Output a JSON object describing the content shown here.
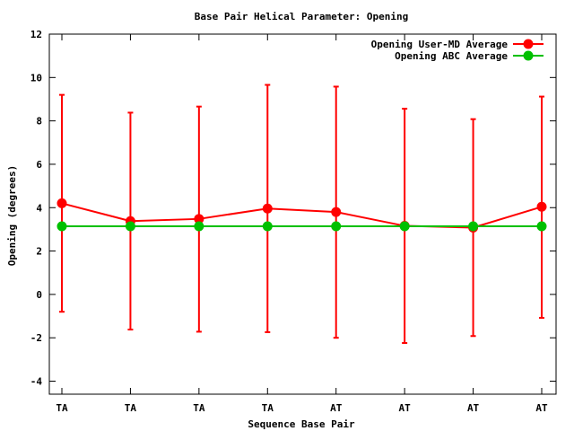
{
  "chart_data": {
    "type": "line",
    "title": "Base Pair Helical Parameter: Opening",
    "xlabel": "Sequence Base Pair",
    "ylabel": "Opening (degrees)",
    "categories": [
      "TA",
      "TA",
      "TA",
      "TA",
      "AT",
      "AT",
      "AT",
      "AT"
    ],
    "ylim": [
      -4.6,
      12
    ],
    "yticks": [
      -4,
      -2,
      0,
      2,
      4,
      6,
      8,
      10,
      12
    ],
    "ytick_labels": [
      "-4",
      "-2",
      "0",
      "2",
      "4",
      "6",
      "8",
      "10",
      "12"
    ],
    "legend_position": "top-right",
    "grid": false,
    "series": [
      {
        "name": "Opening User-MD Average",
        "color": "#ff0000",
        "values": [
          4.2,
          3.38,
          3.48,
          3.96,
          3.8,
          3.16,
          3.08,
          4.04
        ],
        "error_low": [
          -0.8,
          -1.62,
          -1.72,
          -1.74,
          -2.0,
          -2.24,
          -1.92,
          -1.08
        ],
        "error_high": [
          9.2,
          8.38,
          8.66,
          9.66,
          9.58,
          8.56,
          8.08,
          9.12
        ]
      },
      {
        "name": "Opening ABC Average",
        "color": "#00c000",
        "values": [
          3.14,
          3.14,
          3.14,
          3.14,
          3.14,
          3.14,
          3.14,
          3.14
        ]
      }
    ]
  }
}
